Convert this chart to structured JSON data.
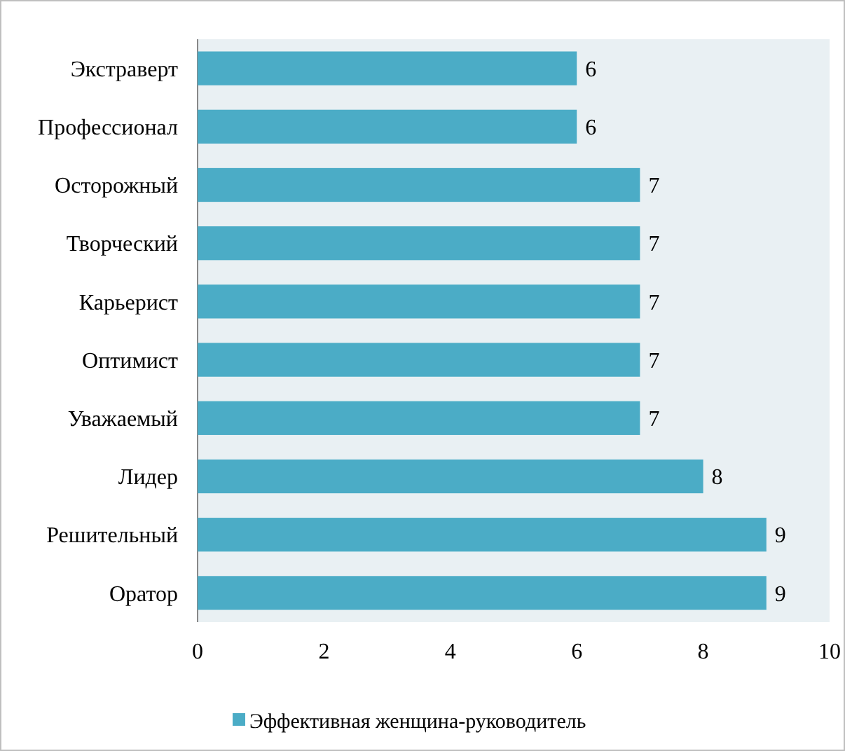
{
  "chart_data": {
    "type": "bar",
    "orientation": "horizontal",
    "categories": [
      "Экстраверт",
      "Профессионал",
      "Осторожный",
      "Творческий",
      "Карьерист",
      "Оптимист",
      "Уважаемый",
      "Лидер",
      "Решительный",
      "Оратор"
    ],
    "series": [
      {
        "name": "Эффективная женщина-руководитель",
        "color": "#4bacc6",
        "values": [
          6,
          6,
          7,
          7,
          7,
          7,
          7,
          8,
          9,
          9
        ]
      }
    ],
    "xlim": [
      0,
      10
    ],
    "xticks": [
      0,
      2,
      4,
      6,
      8,
      10
    ],
    "data_labels": true,
    "legend": "bottom",
    "grid": false
  }
}
